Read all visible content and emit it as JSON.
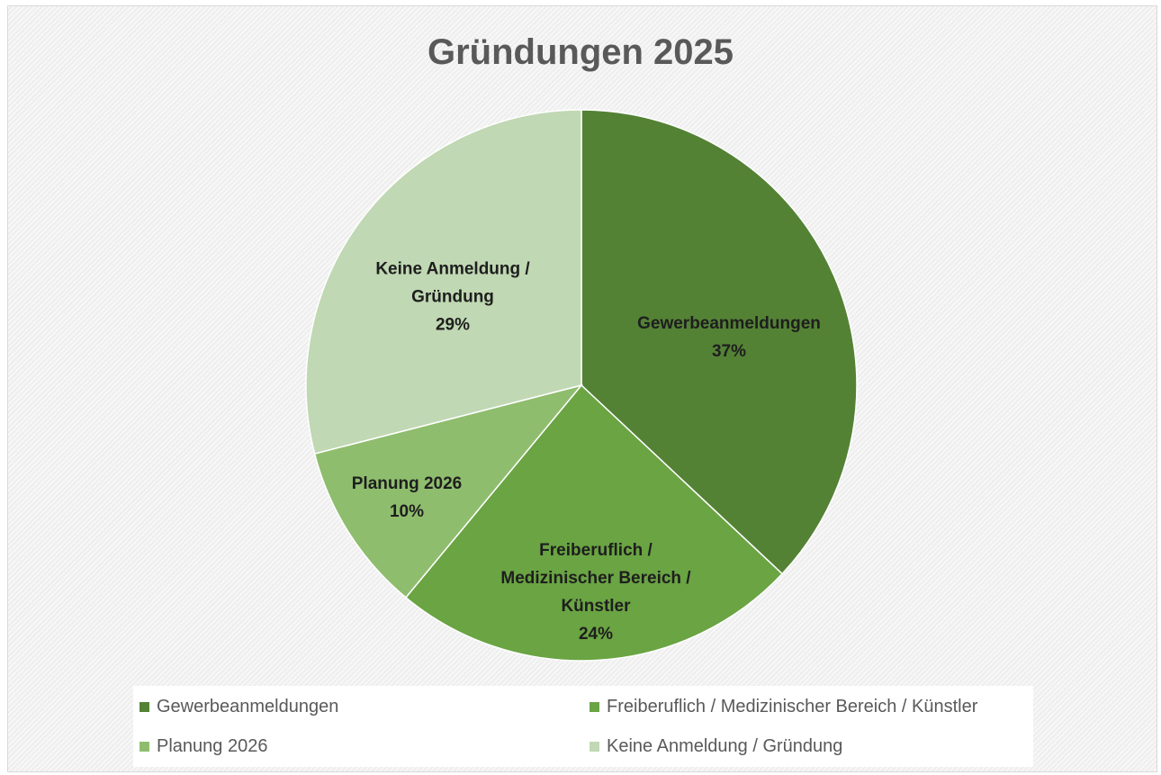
{
  "chart_data": {
    "type": "pie",
    "title": "Gründungen 2025",
    "categories": [
      "Gewerbeanmeldungen",
      "Freiberuflich / Medizinischer Bereich / Künstler",
      "Planung 2026",
      "Keine Anmeldung / Gründung"
    ],
    "values": [
      37,
      24,
      10,
      29
    ],
    "value_labels": [
      "37%",
      "24%",
      "10%",
      "29%"
    ],
    "colors": [
      "#548235",
      "#6aa443",
      "#8fbd6e",
      "#c0d8b3"
    ],
    "legend": "bottom"
  }
}
